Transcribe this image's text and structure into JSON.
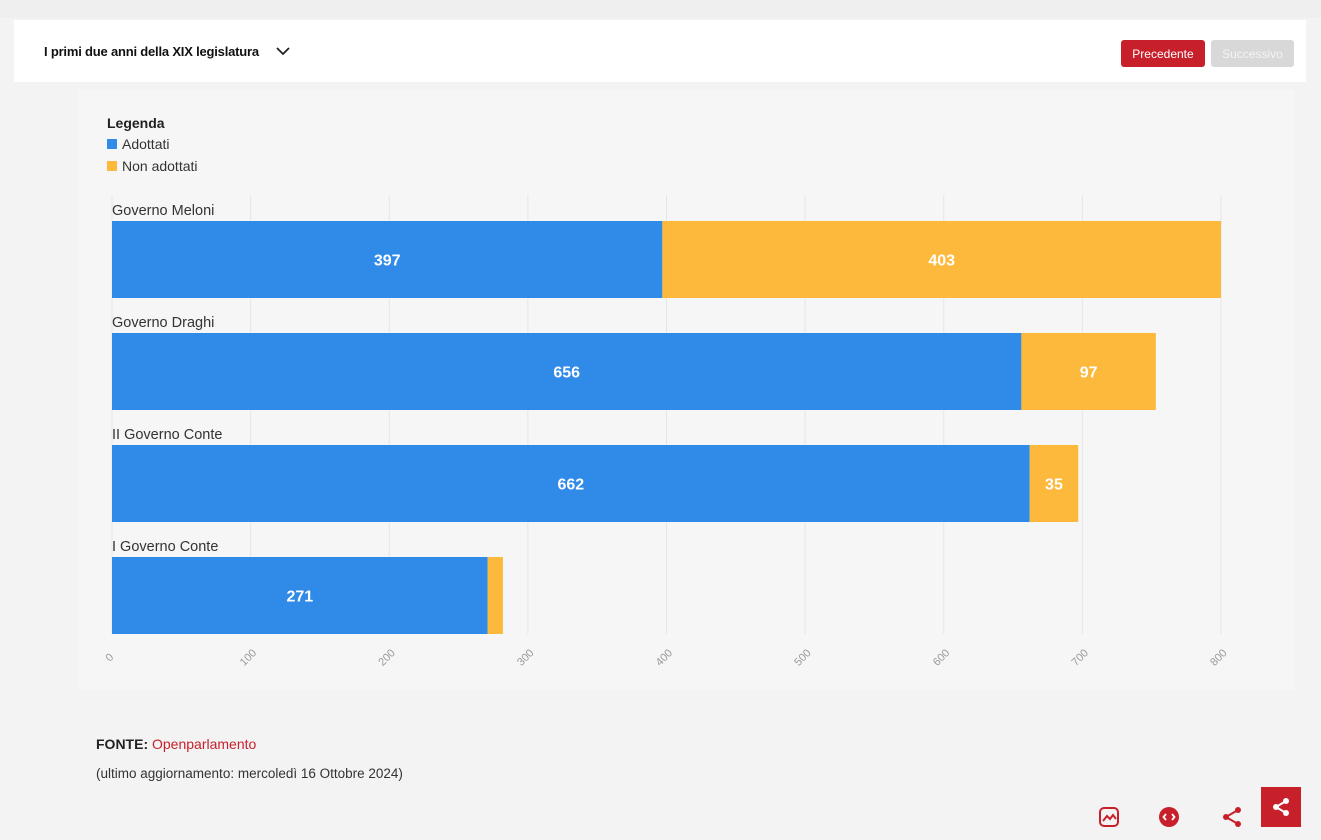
{
  "header": {
    "title": "I primi due anni della XIX legislatura",
    "prev_label": "Precedente",
    "next_label": "Successivo"
  },
  "legend": {
    "title": "Legenda"
  },
  "chart_data": {
    "type": "bar",
    "orientation": "horizontal",
    "stacked": true,
    "categories": [
      "Governo Meloni",
      "Governo Draghi",
      "II Governo Conte",
      "I Governo Conte"
    ],
    "series": [
      {
        "name": "Adottati",
        "color": "#2f8ae8",
        "values": [
          397,
          656,
          662,
          271
        ]
      },
      {
        "name": "Non adottati",
        "color": "#fdb93b",
        "values": [
          403,
          97,
          35,
          11
        ]
      }
    ],
    "data_labels": {
      "Adottati": [
        "397",
        "656",
        "662",
        "271"
      ],
      "Non adottati": [
        "403",
        "97",
        "35",
        ""
      ]
    },
    "xlim": [
      0,
      800
    ],
    "xticks": [
      "0",
      "100",
      "200",
      "300",
      "400",
      "500",
      "600",
      "700",
      "800"
    ],
    "grid": true,
    "legend_position": "top-left"
  },
  "footer": {
    "source_label": "FONTE:",
    "source_name": "Openparlamento",
    "updated": "(ultimo aggiornamento: mercoledì 16 Ottobre 2024)"
  },
  "icons": [
    "chevron-down-icon",
    "image-icon",
    "embed-icon",
    "share-icon"
  ],
  "colors": {
    "accent": "#c8202b",
    "adottati": "#2f8ae8",
    "non_adottati": "#fdb93b"
  }
}
